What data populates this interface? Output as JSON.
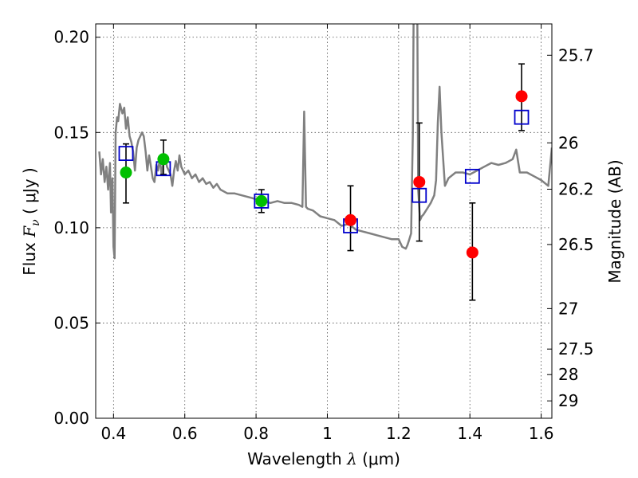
{
  "chart_data": {
    "type": "scatter",
    "title": "",
    "xlabel": "Wavelength",
    "xlabel_symbol": "λ",
    "xlabel_unit": "(μm)",
    "ylabel": "Flux",
    "ylabel_symbol": "F",
    "ylabel_subscript": "ν",
    "ylabel_unit": "( μJy )",
    "y2label": "Magnitude (AB)",
    "xlim": [
      0.35,
      1.63
    ],
    "ylim": [
      0.0,
      0.207
    ],
    "xticks": [
      0.4,
      0.6,
      0.8,
      1.0,
      1.2,
      1.4,
      1.6
    ],
    "xtick_labels": [
      "0.4",
      "0.6",
      "0.8",
      "1",
      "1.2",
      "1.4",
      "1.6"
    ],
    "yticks": [
      0.0,
      0.05,
      0.1,
      0.15,
      0.2
    ],
    "ytick_labels": [
      "0.00",
      "0.05",
      "0.10",
      "0.15",
      "0.20"
    ],
    "y2ticks": [
      25.7,
      26,
      26.2,
      26.5,
      27,
      27.5,
      28,
      29
    ],
    "y2tick_labels": [
      "25.7",
      "26",
      "26.2",
      "26.5",
      "27",
      "27.5",
      "28",
      "29"
    ],
    "grid": true,
    "colors": {
      "sed": "#808080",
      "green": "#00c000",
      "red": "#ff0000",
      "model": "#0000cc",
      "errorbar": "#000000"
    },
    "series": [
      {
        "name": "model SED",
        "kind": "line",
        "x": [
          0.36,
          0.365,
          0.37,
          0.375,
          0.38,
          0.385,
          0.39,
          0.393,
          0.397,
          0.4,
          0.403,
          0.406,
          0.41,
          0.413,
          0.418,
          0.425,
          0.43,
          0.435,
          0.44,
          0.445,
          0.45,
          0.455,
          0.46,
          0.465,
          0.47,
          0.475,
          0.48,
          0.485,
          0.49,
          0.495,
          0.5,
          0.505,
          0.51,
          0.515,
          0.52,
          0.525,
          0.53,
          0.535,
          0.54,
          0.545,
          0.55,
          0.555,
          0.56,
          0.565,
          0.57,
          0.575,
          0.58,
          0.585,
          0.59,
          0.6,
          0.61,
          0.62,
          0.63,
          0.64,
          0.65,
          0.66,
          0.67,
          0.68,
          0.69,
          0.7,
          0.72,
          0.74,
          0.76,
          0.78,
          0.8,
          0.82,
          0.84,
          0.86,
          0.88,
          0.9,
          0.92,
          0.93,
          0.935,
          0.94,
          0.945,
          0.96,
          0.98,
          1.0,
          1.02,
          1.04,
          1.06,
          1.08,
          1.1,
          1.12,
          1.14,
          1.16,
          1.18,
          1.2,
          1.21,
          1.22,
          1.225,
          1.23,
          1.235,
          1.24,
          1.245,
          1.25,
          1.255,
          1.26,
          1.265,
          1.27,
          1.28,
          1.29,
          1.3,
          1.305,
          1.31,
          1.315,
          1.32,
          1.33,
          1.34,
          1.36,
          1.38,
          1.4,
          1.42,
          1.44,
          1.46,
          1.48,
          1.5,
          1.52,
          1.53,
          1.54,
          1.56,
          1.58,
          1.6,
          1.62,
          1.63
        ],
        "y": [
          0.14,
          0.128,
          0.136,
          0.124,
          0.132,
          0.12,
          0.134,
          0.108,
          0.126,
          0.09,
          0.084,
          0.15,
          0.158,
          0.156,
          0.165,
          0.16,
          0.163,
          0.152,
          0.158,
          0.148,
          0.145,
          0.14,
          0.13,
          0.142,
          0.146,
          0.148,
          0.15,
          0.148,
          0.14,
          0.13,
          0.138,
          0.132,
          0.126,
          0.124,
          0.133,
          0.13,
          0.136,
          0.128,
          0.134,
          0.137,
          0.132,
          0.13,
          0.128,
          0.122,
          0.13,
          0.135,
          0.13,
          0.138,
          0.132,
          0.128,
          0.13,
          0.126,
          0.128,
          0.124,
          0.126,
          0.123,
          0.124,
          0.121,
          0.123,
          0.12,
          0.118,
          0.118,
          0.117,
          0.116,
          0.115,
          0.114,
          0.113,
          0.114,
          0.113,
          0.113,
          0.112,
          0.111,
          0.161,
          0.111,
          0.11,
          0.109,
          0.106,
          0.105,
          0.104,
          0.101,
          0.102,
          0.099,
          0.098,
          0.097,
          0.096,
          0.095,
          0.094,
          0.094,
          0.09,
          0.089,
          0.091,
          0.094,
          0.097,
          0.15,
          0.3,
          0.3,
          0.12,
          0.104,
          0.106,
          0.107,
          0.11,
          0.113,
          0.117,
          0.125,
          0.155,
          0.174,
          0.15,
          0.122,
          0.126,
          0.129,
          0.129,
          0.128,
          0.13,
          0.132,
          0.134,
          0.133,
          0.134,
          0.136,
          0.141,
          0.129,
          0.129,
          0.127,
          0.125,
          0.122,
          0.142
        ]
      },
      {
        "name": "observed (green)",
        "kind": "points",
        "x": [
          0.435,
          0.54,
          0.815
        ],
        "y": [
          0.129,
          0.136,
          0.114
        ],
        "yerr_low": [
          0.113,
          0.128,
          0.108
        ],
        "yerr_high": [
          0.144,
          0.146,
          0.12
        ]
      },
      {
        "name": "observed (red)",
        "kind": "points",
        "x": [
          1.065,
          1.258,
          1.407,
          1.545
        ],
        "y": [
          0.104,
          0.124,
          0.087,
          0.169
        ],
        "yerr_low": [
          0.088,
          0.093,
          0.062,
          0.151
        ],
        "yerr_high": [
          0.122,
          0.155,
          0.113,
          0.186
        ]
      },
      {
        "name": "model photometry",
        "kind": "squares",
        "x": [
          0.435,
          0.54,
          0.815,
          1.065,
          1.258,
          1.407,
          1.545
        ],
        "y": [
          0.139,
          0.131,
          0.114,
          0.101,
          0.117,
          0.127,
          0.158
        ]
      }
    ]
  }
}
